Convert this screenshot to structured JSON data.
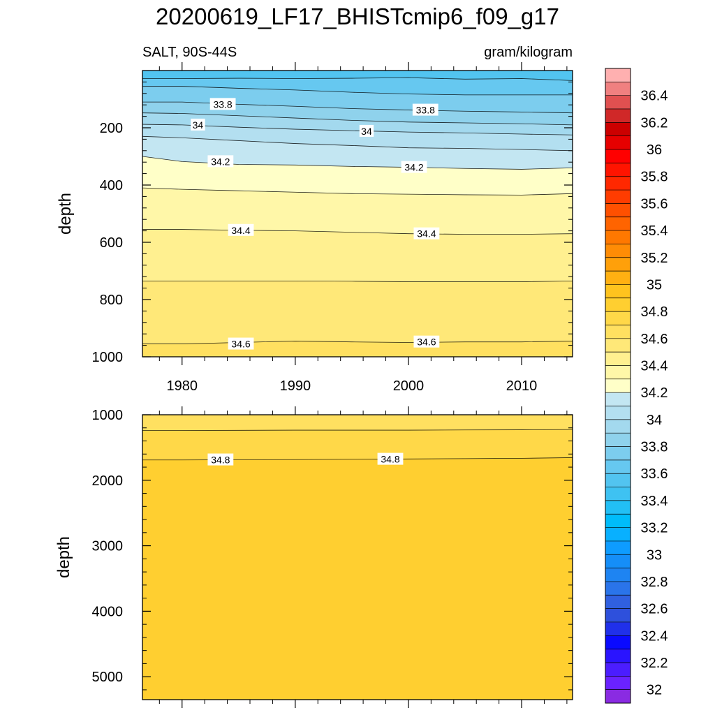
{
  "title": "20200619_LF17_BHISTcmip6_f09_g17",
  "subtitle_left": "SALT, 90S-44S",
  "subtitle_right": "gram/kilogram",
  "colorbar": {
    "levels": [
      32,
      32.1,
      32.2,
      32.3,
      32.4,
      32.5,
      32.6,
      32.7,
      32.8,
      32.9,
      33,
      33.1,
      33.2,
      33.3,
      33.4,
      33.5,
      33.6,
      33.7,
      33.8,
      33.9,
      34,
      34.1,
      34.2,
      34.3,
      34.4,
      34.5,
      34.6,
      34.7,
      34.8,
      34.9,
      35,
      35.1,
      35.2,
      35.3,
      35.4,
      35.5,
      35.6,
      35.7,
      35.8,
      35.9,
      36,
      36.1,
      36.2,
      36.3,
      36.4,
      36.5
    ],
    "labels": [
      "32",
      "32.2",
      "32.4",
      "32.6",
      "32.8",
      "33",
      "33.2",
      "33.4",
      "33.6",
      "33.8",
      "34",
      "34.2",
      "34.4",
      "34.6",
      "34.8",
      "35",
      "35.2",
      "35.4",
      "35.6",
      "35.8",
      "36",
      "36.2",
      "36.4"
    ],
    "colors": [
      "#8a2be2",
      "#6a22ff",
      "#4b1dff",
      "#2a14ff",
      "#0a0aff",
      "#2030ea",
      "#2e50dc",
      "#3060e0",
      "#2a74ea",
      "#1e84f2",
      "#158ef8",
      "#0e9cff",
      "#08b0ff",
      "#00bcfa",
      "#22bff5",
      "#3ec2f2",
      "#52c4f0",
      "#66c8f0",
      "#7ccdee",
      "#8fd2ec",
      "#a3d9ee",
      "#b3dff0",
      "#c3e6f2",
      "#ffffc8",
      "#fff7a8",
      "#fff090",
      "#ffe878",
      "#ffe060",
      "#ffd848",
      "#ffcf30",
      "#ffc31e",
      "#ffb012",
      "#ffa00a",
      "#ff8c05",
      "#ff7800",
      "#ff6400",
      "#ff5000",
      "#ff3c00",
      "#ff2800",
      "#ff1400",
      "#ff0000",
      "#e60000",
      "#cc0000",
      "#d02828",
      "#e05050",
      "#f08080",
      "#ffb0b0"
    ]
  },
  "chart_data": [
    {
      "type": "contour",
      "panel": "upper",
      "variable": "SALT",
      "region": "90S-44S",
      "units": "gram/kilogram",
      "ylabel": "depth",
      "xlabel": "",
      "xlim": [
        1976.5,
        2014.5
      ],
      "ylim": [
        1000,
        0
      ],
      "xticks": [
        1980,
        1990,
        2000,
        2010
      ],
      "xtick_labels": [
        "1980",
        "1990",
        "2000",
        "2010"
      ],
      "yticks": [
        200,
        400,
        600,
        800,
        1000
      ],
      "ytick_labels": [
        "200",
        "400",
        "600",
        "800",
        "1000"
      ],
      "x": [
        1976.5,
        1980,
        1985,
        1990,
        1995,
        2000,
        2005,
        2010,
        2014.5
      ],
      "contours": [
        {
          "level": 33.6,
          "depth": [
            28,
            28,
            27,
            28,
            27,
            25,
            30,
            28,
            35
          ]
        },
        {
          "level": 33.7,
          "depth": [
            55,
            55,
            62,
            68,
            76,
            82,
            85,
            85,
            85
          ]
        },
        {
          "level": 33.8,
          "depth": [
            110,
            110,
            118,
            125,
            133,
            138,
            142,
            145,
            148
          ]
        },
        {
          "level": 33.9,
          "depth": [
            148,
            150,
            158,
            166,
            174,
            180,
            183,
            186,
            190
          ]
        },
        {
          "level": 34.0,
          "depth": [
            188,
            190,
            198,
            205,
            210,
            215,
            218,
            222,
            225
          ]
        },
        {
          "level": 34.1,
          "depth": [
            230,
            235,
            245,
            255,
            262,
            270,
            272,
            276,
            280
          ]
        },
        {
          "level": 34.2,
          "depth": [
            300,
            318,
            328,
            330,
            335,
            338,
            342,
            345,
            340
          ]
        },
        {
          "level": 34.3,
          "depth": [
            410,
            415,
            420,
            425,
            430,
            432,
            434,
            435,
            430
          ]
        },
        {
          "level": 34.4,
          "depth": [
            555,
            555,
            558,
            560,
            565,
            570,
            572,
            572,
            570
          ]
        },
        {
          "level": 34.5,
          "depth": [
            735,
            735,
            735,
            735,
            736,
            738,
            738,
            738,
            735
          ]
        },
        {
          "level": 34.6,
          "depth": [
            955,
            955,
            950,
            945,
            948,
            950,
            948,
            948,
            945
          ]
        }
      ],
      "contour_labels": [
        {
          "text": "33.8",
          "x": 1983.6,
          "depth": 118
        },
        {
          "text": "33.8",
          "x": 2001.5,
          "depth": 138
        },
        {
          "text": "34",
          "x": 1981.4,
          "depth": 190
        },
        {
          "text": "34",
          "x": 1996.3,
          "depth": 212
        },
        {
          "text": "34.2",
          "x": 1983.4,
          "depth": 318
        },
        {
          "text": "34.2",
          "x": 2000.5,
          "depth": 338
        },
        {
          "text": "34.4",
          "x": 1985.2,
          "depth": 558
        },
        {
          "text": "34.4",
          "x": 2001.6,
          "depth": 570
        },
        {
          "text": "34.6",
          "x": 1985.2,
          "depth": 955
        },
        {
          "text": "34.6",
          "x": 2001.6,
          "depth": 948
        }
      ]
    },
    {
      "type": "contour",
      "panel": "lower",
      "variable": "SALT",
      "units": "gram/kilogram",
      "ylabel": "depth",
      "xlabel": "",
      "xlim": [
        1976.5,
        2014.5
      ],
      "ylim": [
        5350,
        1000
      ],
      "yticks": [
        1000,
        2000,
        3000,
        4000,
        5000
      ],
      "ytick_labels": [
        "1000",
        "2000",
        "3000",
        "4000",
        "5000"
      ],
      "x": [
        1976.5,
        1980,
        1985,
        1990,
        1995,
        2000,
        2005,
        2010,
        2014.5
      ],
      "contours": [
        {
          "level": 34.7,
          "depth": [
            1240,
            1240,
            1238,
            1235,
            1235,
            1235,
            1232,
            1230,
            1225
          ]
        },
        {
          "level": 34.8,
          "depth": [
            1690,
            1690,
            1688,
            1685,
            1680,
            1675,
            1670,
            1665,
            1655
          ]
        }
      ],
      "contour_labels": [
        {
          "text": "34.8",
          "x": 1983.4,
          "depth": 1688
        },
        {
          "text": "34.8",
          "x": 1998.4,
          "depth": 1678
        }
      ]
    }
  ]
}
